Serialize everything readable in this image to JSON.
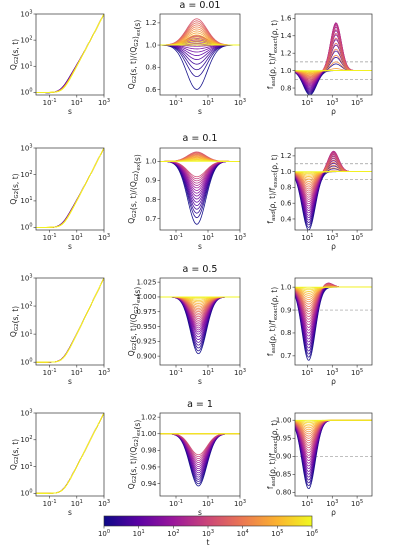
{
  "chart_data": {
    "type": "line",
    "colormap": {
      "name": "plasma",
      "stops": [
        "#0d0887",
        "#5b02a3",
        "#9a179b",
        "#cb4678",
        "#eb7852",
        "#fbb32f",
        "#f0f921"
      ],
      "label": "t",
      "tick_labels": [
        "10^0",
        "10^1",
        "10^2",
        "10^3",
        "10^4",
        "10^5",
        "10^6"
      ],
      "range": [
        0,
        6
      ],
      "scale": "log"
    },
    "rows": [
      {
        "title": "a = 0.01",
        "panels": [
          {
            "kind": "Q",
            "ylabel": "Q_G2(s, t)",
            "xlabel": "s",
            "xticks": [
              "10^-1",
              "10^1",
              "10^3"
            ],
            "xlog": [
              -2,
              3
            ],
            "yticks": [
              "10^0",
              "10^1",
              "10^2",
              "10^3"
            ],
            "ylog": [
              -0.1,
              3.0
            ],
            "knee": 0.0,
            "spread": 0.45
          },
          {
            "kind": "ratio",
            "ylabel": "Q_G2(s, t)/⟨Q_G2⟩_ex(s)",
            "xlabel": "s",
            "xticks": [
              "10^-1",
              "10^1",
              "10^3"
            ],
            "xlog": [
              -2,
              3
            ],
            "yticks": [
              "0.6",
              "0.8",
              "1.0",
              "1.2"
            ],
            "ylim": [
              0.55,
              1.28
            ],
            "peak_x": 0.3,
            "width": 0.9,
            "up": 0.24,
            "down": -0.4,
            "up_lead": false
          },
          {
            "kind": "rho",
            "ylabel": "f_asd(ρ, t)/f_exact(ρ, t)",
            "xlabel": "ρ",
            "xticks": [
              "10^1",
              "10^3",
              "10^5"
            ],
            "xlog": [
              0,
              6.2
            ],
            "yticks": [
              "0.8",
              "1.0",
              "1.2",
              "1.4",
              "1.6"
            ],
            "ylim": [
              0.72,
              1.65
            ],
            "dip_x": 1.2,
            "peak_x": 3.3,
            "dip": -0.28,
            "peak": 0.55,
            "dash": [
              0.9,
              1.1
            ]
          }
        ]
      },
      {
        "title": "a = 0.1",
        "panels": [
          {
            "kind": "Q",
            "ylabel": "Q_G2(s, t)",
            "xlabel": "s",
            "xticks": [
              "10^-1",
              "10^1",
              "10^3"
            ],
            "xlog": [
              -2,
              3
            ],
            "yticks": [
              "10^0",
              "10^1",
              "10^2",
              "10^3"
            ],
            "ylog": [
              -0.1,
              3.0
            ],
            "knee": 0.0,
            "spread": 0.3
          },
          {
            "kind": "ratio",
            "ylabel": "Q_G2(s, t)/⟨Q_G2⟩_ex(s)",
            "xlabel": "s",
            "xticks": [
              "10^-1",
              "10^1",
              "10^3"
            ],
            "xlog": [
              -2,
              3
            ],
            "yticks": [
              "0.7",
              "0.8",
              "0.9",
              "1.0"
            ],
            "ylim": [
              0.64,
              1.07
            ],
            "peak_x": 0.3,
            "width": 0.8,
            "up": 0.05,
            "down": -0.33,
            "up_lead": false
          },
          {
            "kind": "rho",
            "ylabel": "f_asd(ρ, t)/f_exact(ρ, t)",
            "xlabel": "ρ",
            "xticks": [
              "10^1",
              "10^3",
              "10^5"
            ],
            "xlog": [
              0,
              6.2
            ],
            "yticks": [
              "0.4",
              "0.6",
              "0.8",
              "1.0",
              "1.2"
            ],
            "ylim": [
              0.26,
              1.3
            ],
            "dip_x": 1.1,
            "peak_x": 3.1,
            "dip": -0.74,
            "peak": 0.26,
            "dash": [
              0.9,
              1.1
            ]
          }
        ]
      },
      {
        "title": "a = 0.5",
        "panels": [
          {
            "kind": "Q",
            "ylabel": "Q_G2(s, t)",
            "xlabel": "s",
            "xticks": [
              "10^-1",
              "10^1",
              "10^3"
            ],
            "xlog": [
              -2,
              3
            ],
            "yticks": [
              "10^0",
              "10^1",
              "10^2",
              "10^3"
            ],
            "ylog": [
              -0.1,
              3.0
            ],
            "knee": 0.0,
            "spread": 0.12
          },
          {
            "kind": "ratio",
            "ylabel": "Q_G2(s, t)/⟨Q_G2⟩_ex(s)",
            "xlabel": "s",
            "xticks": [
              "10^-1",
              "10^1",
              "10^3"
            ],
            "xlog": [
              -2,
              3
            ],
            "yticks": [
              "0.900",
              "0.925",
              "0.950",
              "0.975",
              "1.000",
              "1.025"
            ],
            "ylim": [
              0.885,
              1.032
            ],
            "peak_x": 0.4,
            "width": 0.7,
            "up": 0.008,
            "down": -0.1,
            "up_lead": true
          },
          {
            "kind": "rho",
            "ylabel": "f_asd(ρ, t)/f_exact(ρ, t)",
            "xlabel": "ρ",
            "xticks": [
              "10^1",
              "10^3",
              "10^5"
            ],
            "xlog": [
              0,
              6.2
            ],
            "yticks": [
              "0.7",
              "0.8",
              "0.9",
              "1.0"
            ],
            "ylim": [
              0.66,
              1.04
            ],
            "dip_x": 1.1,
            "peak_x": 2.6,
            "dip": -0.32,
            "peak": 0.02,
            "dash": [
              0.9
            ]
          }
        ]
      },
      {
        "title": "a = 1",
        "panels": [
          {
            "kind": "Q",
            "ylabel": "Q_G2(s, t)",
            "xlabel": "s",
            "xticks": [
              "10^-1",
              "10^1",
              "10^3"
            ],
            "xlog": [
              -2,
              3
            ],
            "yticks": [
              "10^0",
              "10^1",
              "10^2",
              "10^3"
            ],
            "ylog": [
              -0.1,
              3.0
            ],
            "knee": 0.0,
            "spread": 0.06
          },
          {
            "kind": "ratio",
            "ylabel": "Q_G2(s, t)/⟨Q_G2⟩_ex(s)",
            "xlabel": "s",
            "xticks": [
              "10^-1",
              "10^1",
              "10^3"
            ],
            "xlog": [
              -2,
              3
            ],
            "yticks": [
              "0.94",
              "0.96",
              "0.98",
              "1.00",
              "1.02"
            ],
            "ylim": [
              0.925,
              1.025
            ],
            "peak_x": 0.4,
            "width": 0.75,
            "up": 0.0,
            "down": -0.063,
            "up_lead": false
          },
          {
            "kind": "rho",
            "ylabel": "f_asd(ρ, t)/f_exact(ρ, t)",
            "xlabel": "ρ",
            "xticks": [
              "10^1",
              "10^3",
              "10^5"
            ],
            "xlog": [
              0,
              6.2
            ],
            "yticks": [
              "0.80",
              "0.85",
              "0.90",
              "0.95",
              "1.00"
            ],
            "ylim": [
              0.79,
              1.02
            ],
            "dip_x": 1.1,
            "peak_x": 2.5,
            "dip": -0.19,
            "peak": 0.0,
            "dash": [
              0.9
            ]
          }
        ]
      }
    ]
  }
}
